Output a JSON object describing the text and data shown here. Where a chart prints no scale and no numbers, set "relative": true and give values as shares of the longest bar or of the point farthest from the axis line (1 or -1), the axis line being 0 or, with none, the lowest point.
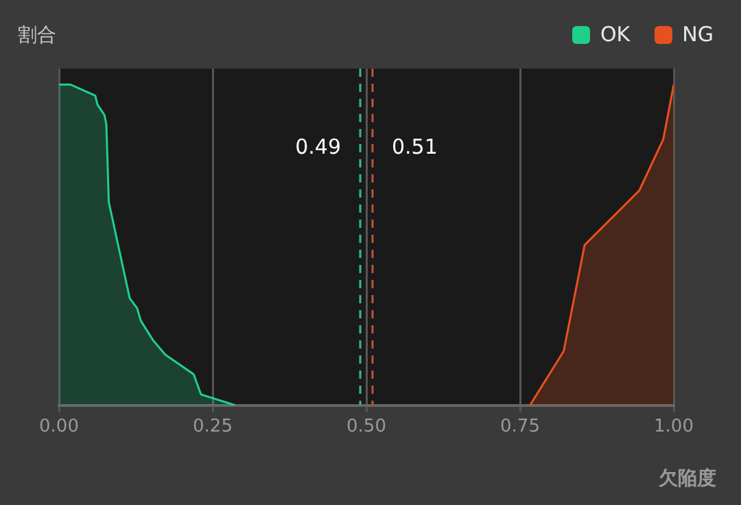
{
  "chart_data": {
    "type": "area",
    "xlabel": "欠陥度",
    "ylabel": "割合",
    "relative": true,
    "xlim": [
      0,
      1
    ],
    "xticks": [
      {
        "value": 0,
        "label": "0.00"
      },
      {
        "value": 0.25,
        "label": "0.25"
      },
      {
        "value": 0.5,
        "label": "0.50"
      },
      {
        "value": 0.75,
        "label": "0.75"
      },
      {
        "value": 1,
        "label": "1.00"
      }
    ],
    "grid": "x",
    "legend": "top right",
    "marker": "none",
    "series": [
      {
        "name": "OK",
        "color": "#1fd08a",
        "x": [
          0,
          0.019,
          0.059,
          0.0625,
          0.074,
          0.077,
          0.081,
          0.115,
          0.127,
          0.133,
          0.153,
          0.173,
          0.219,
          0.231,
          0.287
        ],
        "values": [
          1,
          1,
          0.966,
          0.938,
          0.905,
          0.876,
          0.634,
          0.334,
          0.303,
          0.264,
          0.203,
          0.158,
          0.097,
          0.034,
          0
        ]
      },
      {
        "name": "NG",
        "color": "#e8501f",
        "x": [
          0.766,
          0.821,
          0.855,
          0.944,
          0.983,
          1
        ],
        "values": [
          0,
          0.169,
          0.5,
          0.67,
          0.83,
          1
        ]
      }
    ],
    "ref_lines": [
      {
        "axis": "x",
        "value": 0.49,
        "label": "0.49",
        "color": "#2fbf8a",
        "line_style": "dashed"
      },
      {
        "axis": "x",
        "value": 0.51,
        "label": "0.51",
        "color": "#c8503a",
        "line_style": "dashed"
      }
    ]
  }
}
